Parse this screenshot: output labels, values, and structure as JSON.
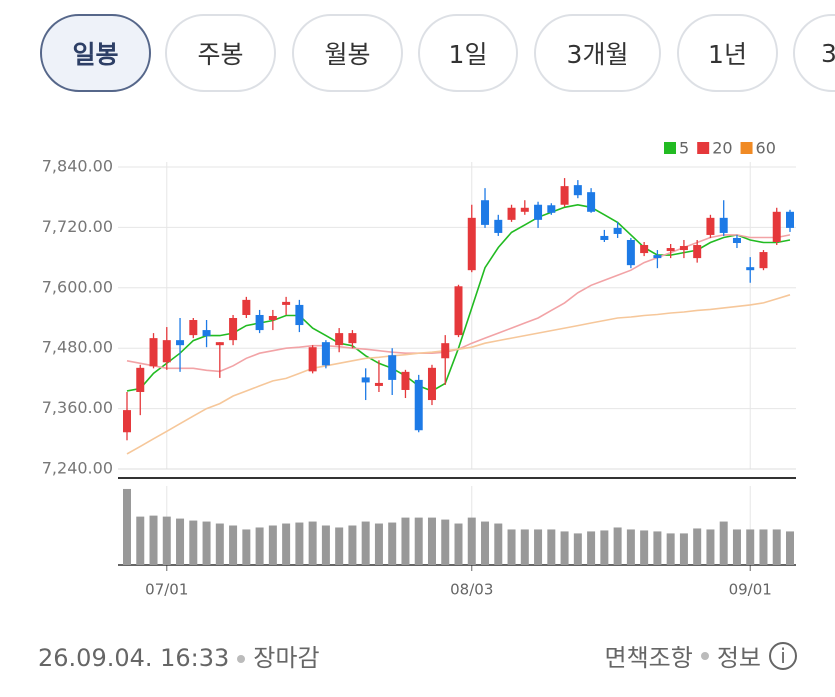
{
  "tabs": [
    "일봉",
    "주봉",
    "월봉",
    "1일",
    "3개월",
    "1년",
    "3"
  ],
  "chart_data": {
    "type": "candlestick",
    "categories": [
      null,
      null,
      null,
      "07/01",
      null,
      null,
      null,
      null,
      null,
      null,
      null,
      null,
      null,
      null,
      null,
      null,
      null,
      null,
      null,
      null,
      null,
      null,
      null,
      null,
      null,
      null,
      "08/03",
      null,
      null,
      null,
      null,
      null,
      null,
      null,
      null,
      null,
      null,
      null,
      null,
      null,
      null,
      null,
      null,
      null,
      null,
      null,
      null,
      "09/01",
      null,
      null,
      null
    ],
    "open": [
      7313,
      7393,
      7444,
      7452,
      7496,
      7506,
      7516,
      7486,
      7496,
      7546,
      7546,
      7536,
      7566,
      7566,
      7434,
      7492,
      7486,
      7490,
      7422,
      7405,
      7466,
      7397,
      7417,
      7377,
      7460,
      7506,
      7635,
      7774,
      7735,
      7735,
      7751,
      7765,
      7764,
      7765,
      7804,
      7790,
      7703,
      7719,
      7695,
      7669,
      7665,
      7673,
      7675,
      7659,
      7705,
      7739,
      7699,
      7641,
      7639,
      7691,
      7751
    ],
    "high": [
      7393,
      7447,
      7510,
      7522,
      7540,
      7540,
      7536,
      7492,
      7546,
      7582,
      7556,
      7556,
      7582,
      7576,
      7486,
      7496,
      7520,
      7516,
      7440,
      7456,
      7480,
      7437,
      7427,
      7447,
      7506,
      7606,
      7765,
      7798,
      7745,
      7765,
      7774,
      7771,
      7768,
      7818,
      7814,
      7798,
      7715,
      7731,
      7699,
      7691,
      7675,
      7687,
      7695,
      7695,
      7745,
      7774,
      7705,
      7661,
      7675,
      7759,
      7755
    ],
    "low": [
      7297,
      7347,
      7440,
      7437,
      7433,
      7500,
      7482,
      7421,
      7486,
      7540,
      7510,
      7516,
      7546,
      7512,
      7430,
      7440,
      7472,
      7480,
      7377,
      7393,
      7387,
      7381,
      7313,
      7367,
      7407,
      7502,
      7631,
      7719,
      7703,
      7731,
      7745,
      7719,
      7745,
      7761,
      7778,
      7749,
      7691,
      7699,
      7639,
      7663,
      7639,
      7659,
      7659,
      7650,
      7699,
      7703,
      7679,
      7610,
      7635,
      7685,
      7711
    ],
    "close": [
      7357,
      7441,
      7500,
      7496,
      7486,
      7536,
      7504,
      7492,
      7540,
      7576,
      7516,
      7544,
      7572,
      7526,
      7482,
      7446,
      7510,
      7510,
      7412,
      7411,
      7417,
      7433,
      7317,
      7441,
      7490,
      7603,
      7739,
      7725,
      7709,
      7759,
      7759,
      7735,
      7749,
      7802,
      7784,
      7751,
      7695,
      7707,
      7645,
      7685,
      7659,
      7679,
      7683,
      7685,
      7739,
      7709,
      7689,
      7635,
      7671,
      7751,
      7719
    ],
    "up_color": "#e5383b",
    "down_color": "#1d7ae6",
    "volume": [
      77,
      49,
      50,
      49,
      47,
      45,
      44,
      42,
      40,
      36,
      38,
      40,
      42,
      43,
      44,
      40,
      38,
      40,
      44,
      42,
      43,
      48,
      48,
      48,
      46,
      42,
      48,
      44,
      42,
      36,
      36,
      36,
      36,
      34,
      32,
      34,
      35,
      38,
      36,
      35,
      34,
      32,
      32,
      37,
      36,
      44,
      36,
      36,
      36,
      36,
      34
    ],
    "volume_lim": [
      0,
      80
    ],
    "volume_color": "#999999",
    "series": [
      {
        "name": "5",
        "color": "#22bb22",
        "values": [
          7395,
          7400,
          7430,
          7450,
          7470,
          7495,
          7505,
          7505,
          7510,
          7525,
          7530,
          7535,
          7545,
          7545,
          7520,
          7505,
          7490,
          7485,
          7465,
          7450,
          7440,
          7425,
          7405,
          7395,
          7410,
          7480,
          7560,
          7640,
          7680,
          7710,
          7725,
          7740,
          7750,
          7760,
          7765,
          7760,
          7745,
          7730,
          7705,
          7680,
          7665,
          7665,
          7670,
          7675,
          7690,
          7700,
          7705,
          7695,
          7690,
          7690,
          7695
        ]
      },
      {
        "name": "20",
        "color": "#e5383b",
        "line_color": "#f2a3a6",
        "values": [
          7455,
          7450,
          7445,
          7440,
          7440,
          7440,
          7436,
          7434,
          7445,
          7460,
          7470,
          7475,
          7480,
          7482,
          7485,
          7485,
          7483,
          7480,
          7478,
          7475,
          7472,
          7470,
          7470,
          7470,
          7472,
          7478,
          7490,
          7500,
          7510,
          7520,
          7530,
          7540,
          7555,
          7570,
          7590,
          7605,
          7615,
          7625,
          7635,
          7650,
          7660,
          7670,
          7680,
          7690,
          7700,
          7705,
          7705,
          7700,
          7700,
          7700,
          7705
        ]
      },
      {
        "name": "60",
        "color": "#f08a24",
        "line_color": "#f6c79a",
        "values": [
          7270,
          7285,
          7300,
          7315,
          7330,
          7345,
          7360,
          7370,
          7385,
          7395,
          7405,
          7415,
          7420,
          7430,
          7440,
          7445,
          7450,
          7455,
          7460,
          7462,
          7465,
          7467,
          7470,
          7472,
          7475,
          7478,
          7482,
          7490,
          7495,
          7500,
          7505,
          7510,
          7515,
          7520,
          7525,
          7530,
          7535,
          7540,
          7542,
          7545,
          7547,
          7550,
          7552,
          7555,
          7557,
          7560,
          7563,
          7566,
          7570,
          7578,
          7586
        ]
      }
    ],
    "ylim": [
      7240,
      7840
    ],
    "yticks": [
      {
        "value": 7240,
        "label": "7,240.00"
      },
      {
        "value": 7360,
        "label": "7,360.00"
      },
      {
        "value": 7480,
        "label": "7,480.00"
      },
      {
        "value": 7600,
        "label": "7,600.00"
      },
      {
        "value": 7720,
        "label": "7,720.00"
      },
      {
        "value": 7840,
        "label": "7,840.00"
      }
    ],
    "grid": true
  },
  "footer": {
    "timestamp": "26.09.04. 16:33",
    "status": "장마감",
    "disclaimer": "면책조항",
    "info": "정보"
  }
}
